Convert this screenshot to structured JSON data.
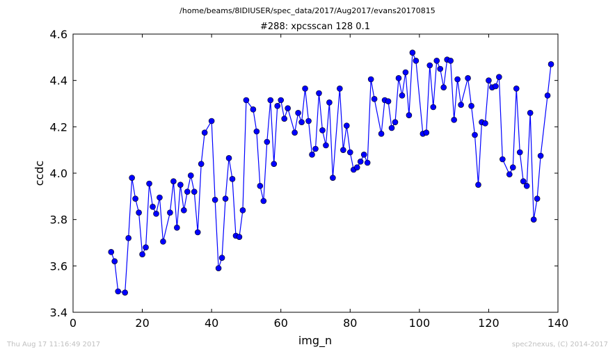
{
  "header": {
    "suptitle": "/home/beams/8IDIUSER/spec_data/2017/Aug2017/evans20170815",
    "title": "#288: xpcsscan 128 0.1"
  },
  "footer": {
    "timestamp": "Thu Aug 17 11:16:49 2017",
    "credit": "spec2nexus, (C) 2014-2017"
  },
  "colors": {
    "series": "#0000ff",
    "marker_edge": "#000000"
  },
  "chart_data": {
    "type": "line",
    "markers": "circle",
    "grid": false,
    "xlabel": "img_n",
    "ylabel": "ccdc",
    "xlim": [
      0,
      140
    ],
    "ylim": [
      3.4,
      4.6
    ],
    "xticks": [
      0,
      20,
      40,
      60,
      80,
      100,
      120,
      140
    ],
    "yticks": [
      3.4,
      3.6,
      3.8,
      4.0,
      4.2,
      4.4,
      4.6
    ],
    "xtick_labels": [
      "0",
      "20",
      "40",
      "60",
      "80",
      "100",
      "120",
      "140"
    ],
    "ytick_labels": [
      "3.4",
      "3.6",
      "3.8",
      "4.0",
      "4.2",
      "4.4",
      "4.6"
    ],
    "x": [
      11,
      12,
      13,
      15,
      16,
      17,
      18,
      19,
      20,
      21,
      22,
      23,
      24,
      25,
      26,
      28,
      29,
      30,
      31,
      32,
      33,
      34,
      35,
      36,
      37,
      38,
      40,
      41,
      42,
      43,
      44,
      45,
      46,
      47,
      48,
      49,
      50,
      52,
      53,
      54,
      55,
      56,
      57,
      58,
      59,
      60,
      61,
      62,
      64,
      65,
      66,
      67,
      68,
      69,
      70,
      71,
      72,
      73,
      74,
      75,
      77,
      78,
      79,
      80,
      81,
      82,
      83,
      84,
      85,
      86,
      87,
      89,
      90,
      91,
      92,
      93,
      94,
      95,
      96,
      97,
      98,
      99,
      101,
      102,
      103,
      104,
      105,
      106,
      107,
      108,
      109,
      110,
      111,
      112,
      114,
      115,
      116,
      117,
      118,
      119,
      120,
      121,
      122,
      123,
      124,
      126,
      127,
      128,
      129,
      130,
      131,
      132,
      133,
      134,
      135,
      137,
      138
    ],
    "y": [
      3.66,
      3.62,
      3.49,
      3.485,
      3.72,
      3.98,
      3.89,
      3.83,
      3.65,
      3.68,
      3.955,
      3.855,
      3.825,
      3.895,
      3.705,
      3.83,
      3.965,
      3.765,
      3.95,
      3.84,
      3.92,
      3.99,
      3.92,
      3.745,
      4.04,
      4.175,
      4.225,
      3.885,
      3.59,
      3.635,
      3.89,
      4.065,
      3.975,
      3.73,
      3.725,
      3.84,
      4.315,
      4.275,
      4.18,
      3.945,
      3.88,
      4.135,
      4.315,
      4.04,
      4.29,
      4.315,
      4.235,
      4.28,
      4.175,
      4.26,
      4.22,
      4.365,
      4.225,
      4.08,
      4.105,
      4.345,
      4.185,
      4.12,
      4.305,
      3.98,
      4.365,
      4.1,
      4.205,
      4.09,
      4.015,
      4.025,
      4.05,
      4.08,
      4.045,
      4.405,
      4.32,
      4.17,
      4.315,
      4.31,
      4.195,
      4.22,
      4.41,
      4.335,
      4.435,
      4.25,
      4.52,
      4.485,
      4.17,
      4.175,
      4.465,
      4.285,
      4.485,
      4.45,
      4.37,
      4.49,
      4.485,
      4.23,
      4.405,
      4.295,
      4.41,
      4.29,
      4.165,
      3.95,
      4.22,
      4.215,
      4.4,
      4.37,
      4.375,
      4.415,
      4.06,
      3.995,
      4.025,
      4.365,
      4.09,
      3.965,
      3.945,
      4.26,
      3.8,
      3.89,
      4.075,
      4.335,
      4.47
    ]
  }
}
